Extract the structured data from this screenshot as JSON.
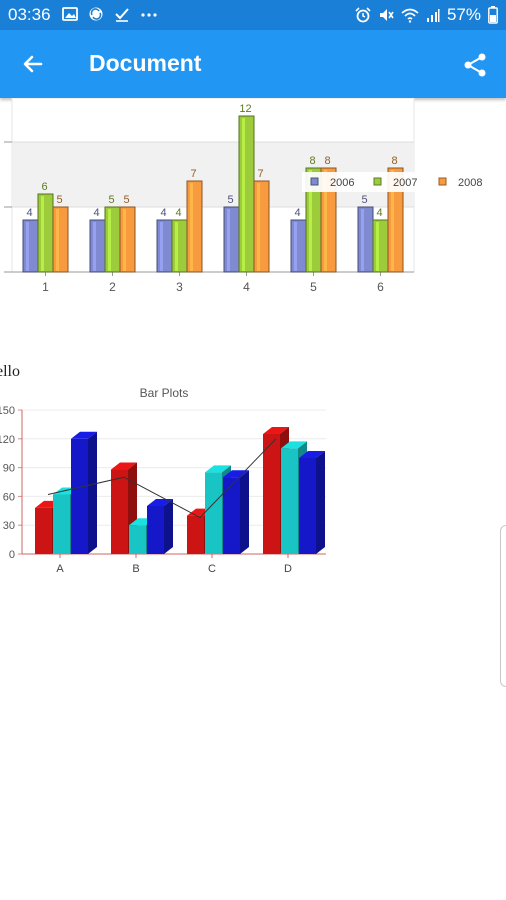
{
  "status_bar": {
    "time": "03:36",
    "battery": "57%",
    "left_icons": [
      "image-icon",
      "sync-icon",
      "check-icon",
      "more-dots-icon"
    ],
    "right_icons": [
      "alarm-icon",
      "mute-icon",
      "wifi-icon",
      "signal-icon",
      "battery-icon"
    ]
  },
  "app_bar": {
    "title": "Document",
    "color": "#2196f3"
  },
  "document": {
    "text_line": "ello"
  },
  "chart_data": [
    {
      "type": "bar",
      "title": "",
      "categories": [
        "1",
        "2",
        "3",
        "4",
        "5",
        "6"
      ],
      "series": [
        {
          "name": "2006",
          "values": [
            4,
            4,
            4,
            5,
            4,
            5
          ],
          "color": "#7f8ad0"
        },
        {
          "name": "2007",
          "values": [
            6,
            5,
            4,
            12,
            8,
            4
          ],
          "color": "#9ccb3b"
        },
        {
          "name": "2008",
          "values": [
            5,
            5,
            7,
            7,
            8,
            8
          ],
          "color": "#f79b3e"
        }
      ],
      "ylim": [
        0,
        12
      ],
      "grid": true,
      "legend": "right",
      "data_labels": true
    },
    {
      "type": "bar",
      "title": "Bar Plots",
      "categories": [
        "A",
        "B",
        "C",
        "D"
      ],
      "series": [
        {
          "values": [
            48,
            88,
            40,
            125
          ],
          "color": "#cc1414"
        },
        {
          "values": [
            62,
            30,
            85,
            110
          ],
          "color": "#18c4c4"
        },
        {
          "values": [
            120,
            50,
            80,
            100
          ],
          "color": "#1418c8"
        }
      ],
      "line": [
        62,
        80,
        38,
        120
      ],
      "y_ticks": [
        "0",
        "30",
        "60",
        "90",
        "120",
        "150"
      ],
      "ylim": [
        0,
        150
      ],
      "grid": true,
      "style": "3d"
    }
  ]
}
